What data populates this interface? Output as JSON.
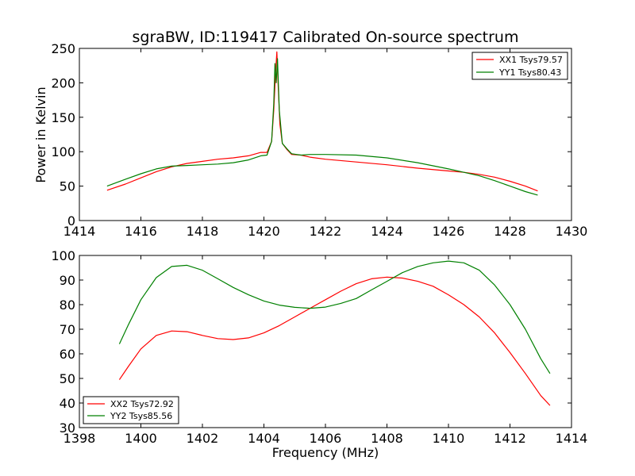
{
  "figure": {
    "title": "sgraBW, ID:119417 Calibrated On-source spectrum"
  },
  "colors": {
    "red": "#ff0000",
    "green": "#008000"
  },
  "chart_data": [
    {
      "type": "line",
      "ylabel": "Power in Kelvin",
      "xlabel": "",
      "xlim": [
        1414,
        1430
      ],
      "ylim": [
        0,
        250
      ],
      "xticks": [
        1414,
        1416,
        1418,
        1420,
        1422,
        1424,
        1426,
        1428,
        1430
      ],
      "yticks": [
        0,
        50,
        100,
        150,
        200,
        250
      ],
      "legend_position": "top-right",
      "grid": false,
      "series": [
        {
          "name": "XX1 Tsys79.57",
          "color": "#ff0000",
          "points": [
            [
              1414.9,
              44
            ],
            [
              1415.5,
              53
            ],
            [
              1416,
              62
            ],
            [
              1416.5,
              71
            ],
            [
              1417,
              78
            ],
            [
              1417.5,
              83
            ],
            [
              1418,
              86
            ],
            [
              1418.5,
              89
            ],
            [
              1419,
              91
            ],
            [
              1419.5,
              94
            ],
            [
              1419.9,
              99
            ],
            [
              1420.1,
              99
            ],
            [
              1420.25,
              115
            ],
            [
              1420.32,
              160
            ],
            [
              1420.38,
              215
            ],
            [
              1420.42,
              245
            ],
            [
              1420.46,
              200
            ],
            [
              1420.52,
              140
            ],
            [
              1420.6,
              112
            ],
            [
              1420.75,
              103
            ],
            [
              1420.9,
              96
            ],
            [
              1421.2,
              95
            ],
            [
              1421.5,
              92
            ],
            [
              1422,
              89
            ],
            [
              1423,
              85
            ],
            [
              1424,
              81
            ],
            [
              1425,
              76
            ],
            [
              1426,
              72
            ],
            [
              1426.5,
              70
            ],
            [
              1427,
              67
            ],
            [
              1427.5,
              63
            ],
            [
              1428,
              57
            ],
            [
              1428.5,
              50
            ],
            [
              1428.9,
              43
            ]
          ]
        },
        {
          "name": "YY1 Tsys80.43",
          "color": "#008000",
          "points": [
            [
              1414.9,
              50
            ],
            [
              1415.5,
              60
            ],
            [
              1416,
              68
            ],
            [
              1416.5,
              75
            ],
            [
              1417,
              79
            ],
            [
              1417.5,
              80
            ],
            [
              1418,
              81
            ],
            [
              1418.5,
              82
            ],
            [
              1419,
              84
            ],
            [
              1419.5,
              88
            ],
            [
              1419.9,
              94
            ],
            [
              1420.1,
              95
            ],
            [
              1420.25,
              115
            ],
            [
              1420.32,
              170
            ],
            [
              1420.36,
              228
            ],
            [
              1420.4,
              200
            ],
            [
              1420.44,
              235
            ],
            [
              1420.5,
              160
            ],
            [
              1420.6,
              112
            ],
            [
              1420.75,
              104
            ],
            [
              1420.9,
              97
            ],
            [
              1421.2,
              95
            ],
            [
              1421.5,
              96
            ],
            [
              1422,
              96
            ],
            [
              1423,
              95
            ],
            [
              1424,
              91
            ],
            [
              1425,
              84
            ],
            [
              1426,
              75
            ],
            [
              1426.5,
              70
            ],
            [
              1427,
              65
            ],
            [
              1427.5,
              58
            ],
            [
              1428,
              50
            ],
            [
              1428.5,
              42
            ],
            [
              1428.9,
              37
            ]
          ]
        }
      ]
    },
    {
      "type": "line",
      "ylabel": "",
      "xlabel": "Frequency (MHz)",
      "xlim": [
        1398,
        1414
      ],
      "ylim": [
        30,
        100
      ],
      "xticks": [
        1398,
        1400,
        1402,
        1404,
        1406,
        1408,
        1410,
        1412,
        1414
      ],
      "yticks": [
        30,
        40,
        50,
        60,
        70,
        80,
        90,
        100
      ],
      "legend_position": "lower-left",
      "grid": false,
      "series": [
        {
          "name": "XX2 Tsys72.92",
          "color": "#ff0000",
          "points": [
            [
              1399.3,
              49.5
            ],
            [
              1399.6,
              55
            ],
            [
              1400,
              62
            ],
            [
              1400.5,
              67.5
            ],
            [
              1401,
              69.3
            ],
            [
              1401.5,
              69
            ],
            [
              1402,
              67.5
            ],
            [
              1402.5,
              66.2
            ],
            [
              1403,
              65.8
            ],
            [
              1403.5,
              66.5
            ],
            [
              1404,
              68.5
            ],
            [
              1404.5,
              71.5
            ],
            [
              1405,
              75
            ],
            [
              1405.5,
              78.5
            ],
            [
              1406,
              82
            ],
            [
              1406.5,
              85.5
            ],
            [
              1407,
              88.5
            ],
            [
              1407.5,
              90.5
            ],
            [
              1408,
              91.2
            ],
            [
              1408.5,
              90.8
            ],
            [
              1409,
              89.5
            ],
            [
              1409.5,
              87.5
            ],
            [
              1410,
              84
            ],
            [
              1410.5,
              80
            ],
            [
              1411,
              75
            ],
            [
              1411.5,
              68.5
            ],
            [
              1412,
              60.5
            ],
            [
              1412.5,
              52
            ],
            [
              1413,
              43
            ],
            [
              1413.3,
              39
            ]
          ]
        },
        {
          "name": "YY2 Tsys85.56",
          "color": "#008000",
          "points": [
            [
              1399.3,
              64
            ],
            [
              1399.6,
              72
            ],
            [
              1400,
              82
            ],
            [
              1400.5,
              91
            ],
            [
              1401,
              95.5
            ],
            [
              1401.5,
              96
            ],
            [
              1402,
              94
            ],
            [
              1402.5,
              90.5
            ],
            [
              1403,
              87
            ],
            [
              1403.5,
              84
            ],
            [
              1404,
              81.5
            ],
            [
              1404.5,
              79.8
            ],
            [
              1405,
              78.9
            ],
            [
              1405.5,
              78.5
            ],
            [
              1406,
              79
            ],
            [
              1406.5,
              80.5
            ],
            [
              1407,
              82.5
            ],
            [
              1407.5,
              86
            ],
            [
              1408,
              89.5
            ],
            [
              1408.5,
              93
            ],
            [
              1409,
              95.5
            ],
            [
              1409.5,
              97
            ],
            [
              1410,
              97.7
            ],
            [
              1410.5,
              97
            ],
            [
              1411,
              94
            ],
            [
              1411.5,
              88
            ],
            [
              1412,
              80
            ],
            [
              1412.5,
              70
            ],
            [
              1413,
              58
            ],
            [
              1413.3,
              52
            ]
          ]
        }
      ]
    }
  ]
}
